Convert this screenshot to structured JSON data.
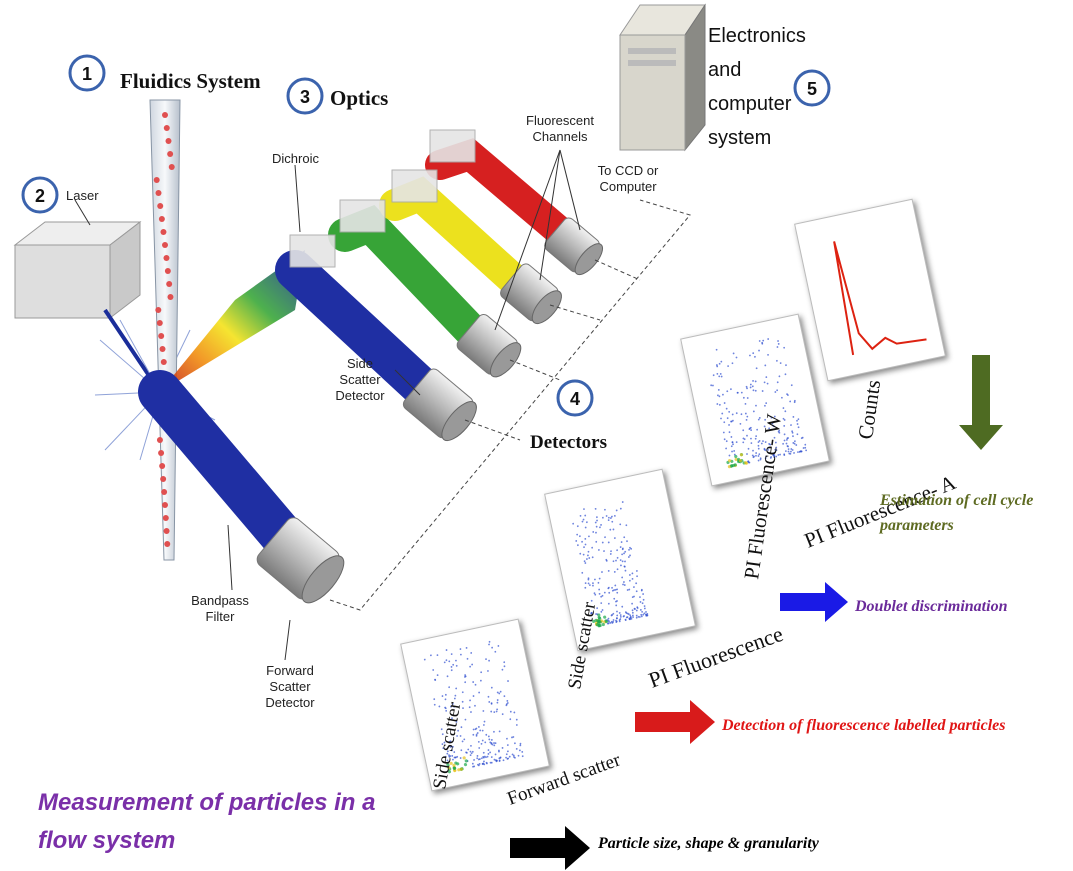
{
  "components": [
    {
      "number": "1",
      "label": "Fluidics System"
    },
    {
      "number": "2",
      "label": "Laser"
    },
    {
      "number": "3",
      "label": "Optics"
    },
    {
      "number": "4",
      "label": "Detectors"
    },
    {
      "number": "5",
      "label_lines": [
        "Electronics",
        "and",
        "computer",
        "system"
      ]
    }
  ],
  "callouts": {
    "dichroic": "Dichroic",
    "fluorescent_channels": [
      "Fluorescent",
      "Channels"
    ],
    "to_ccd": [
      "To CCD or",
      "Computer"
    ],
    "side_scatter_detector": [
      "Side",
      "Scatter",
      "Detector"
    ],
    "bandpass_filter": [
      "Bandpass",
      "Filter"
    ],
    "forward_scatter_detector": [
      "Forward",
      "Scatter",
      "Detector"
    ]
  },
  "plots": [
    {
      "y_label": "Side scatter",
      "x_label": "Forward scatter"
    },
    {
      "y_label": "Side scatter",
      "x_label": "PI Fluorescence"
    },
    {
      "y_label": "PI Fluorescence- W",
      "x_label": "PI Fluorescence- A"
    },
    {
      "y_label": "Counts"
    }
  ],
  "outcomes": [
    {
      "lines": [
        "Estimation of cell cycle",
        "parameters"
      ]
    },
    {
      "lines": [
        "Doublet  discrimination"
      ]
    },
    {
      "lines": [
        "Detection of fluorescence  labelled  particles"
      ]
    },
    {
      "lines": [
        "Particle size, shape & granularity"
      ]
    }
  ],
  "caption": [
    "Measurement of particles in a",
    "flow system"
  ]
}
